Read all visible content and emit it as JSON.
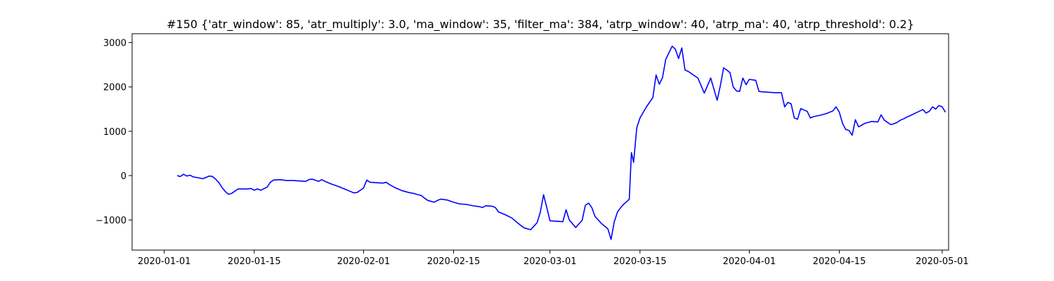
{
  "chart_data": {
    "type": "line",
    "title": "#150 {'atr_window': 85, 'atr_multiply': 3.0, 'ma_window': 35, 'filter_ma': 384, 'atrp_window': 40, 'atrp_ma': 40, 'atrp_threshold': 0.2}",
    "xlabel": "",
    "ylabel": "",
    "x_is_date": true,
    "xlim": [
      "2019-12-27",
      "2020-05-02"
    ],
    "ylim": [
      -1680,
      3200
    ],
    "xticks": [
      "2020-01-01",
      "2020-01-15",
      "2020-02-01",
      "2020-02-15",
      "2020-03-01",
      "2020-03-15",
      "2020-04-01",
      "2020-04-15",
      "2020-05-01"
    ],
    "yticks": [
      -1000,
      0,
      1000,
      2000,
      3000
    ],
    "ytick_labels": [
      "−1000",
      "0",
      "1000",
      "2000",
      "3000"
    ],
    "grid": false,
    "legend": "none",
    "series": [
      {
        "color": "#0000ff",
        "points": [
          [
            "2020-01-03",
            0
          ],
          [
            "2020-01-03",
            -20
          ],
          [
            "2020-01-04",
            30
          ],
          [
            "2020-01-04",
            -10
          ],
          [
            "2020-01-05",
            10
          ],
          [
            "2020-01-05",
            -30
          ],
          [
            "2020-01-06",
            -40
          ],
          [
            "2020-01-07",
            -70
          ],
          [
            "2020-01-07",
            -40
          ],
          [
            "2020-01-08",
            -10
          ],
          [
            "2020-01-08",
            -20
          ],
          [
            "2020-01-09",
            -80
          ],
          [
            "2020-01-09",
            -160
          ],
          [
            "2020-01-10",
            -270
          ],
          [
            "2020-01-10",
            -360
          ],
          [
            "2020-01-11",
            -420
          ],
          [
            "2020-01-11",
            -400
          ],
          [
            "2020-01-12",
            -350
          ],
          [
            "2020-01-12",
            -300
          ],
          [
            "2020-01-13",
            -300
          ],
          [
            "2020-01-14",
            -300
          ],
          [
            "2020-01-14",
            -290
          ],
          [
            "2020-01-15",
            -330
          ],
          [
            "2020-01-15",
            -300
          ],
          [
            "2020-01-16",
            -330
          ],
          [
            "2020-01-17",
            -260
          ],
          [
            "2020-01-17",
            -150
          ],
          [
            "2020-01-18",
            -100
          ],
          [
            "2020-01-19",
            -90
          ],
          [
            "2020-01-19",
            -100
          ],
          [
            "2020-01-20",
            -110
          ],
          [
            "2020-01-21",
            -110
          ],
          [
            "2020-01-22",
            -120
          ],
          [
            "2020-01-23",
            -130
          ],
          [
            "2020-01-23",
            -90
          ],
          [
            "2020-01-24",
            -80
          ],
          [
            "2020-01-25",
            -130
          ],
          [
            "2020-01-25",
            -90
          ],
          [
            "2020-01-26",
            -130
          ],
          [
            "2020-01-27",
            -190
          ],
          [
            "2020-01-28",
            -240
          ],
          [
            "2020-01-29",
            -300
          ],
          [
            "2020-01-30",
            -360
          ],
          [
            "2020-01-30",
            -390
          ],
          [
            "2020-01-31",
            -380
          ],
          [
            "2020-02-01",
            -280
          ],
          [
            "2020-02-01",
            -100
          ],
          [
            "2020-02-02",
            -150
          ],
          [
            "2020-02-03",
            -160
          ],
          [
            "2020-02-04",
            -170
          ],
          [
            "2020-02-04",
            -150
          ],
          [
            "2020-02-05",
            -200
          ],
          [
            "2020-02-06",
            -280
          ],
          [
            "2020-02-06",
            -310
          ],
          [
            "2020-02-07",
            -340
          ],
          [
            "2020-02-08",
            -380
          ],
          [
            "2020-02-09",
            -410
          ],
          [
            "2020-02-10",
            -450
          ],
          [
            "2020-02-10",
            -510
          ],
          [
            "2020-02-11",
            -560
          ],
          [
            "2020-02-12",
            -600
          ],
          [
            "2020-02-12",
            -560
          ],
          [
            "2020-02-13",
            -530
          ],
          [
            "2020-02-14",
            -550
          ],
          [
            "2020-02-15",
            -600
          ],
          [
            "2020-02-16",
            -640
          ],
          [
            "2020-02-17",
            -650
          ],
          [
            "2020-02-18",
            -680
          ],
          [
            "2020-02-19",
            -700
          ],
          [
            "2020-02-19",
            -720
          ],
          [
            "2020-02-20",
            -680
          ],
          [
            "2020-02-21",
            -690
          ],
          [
            "2020-02-21",
            -720
          ],
          [
            "2020-02-22",
            -820
          ],
          [
            "2020-02-23",
            -880
          ],
          [
            "2020-02-24",
            -950
          ],
          [
            "2020-02-25",
            -1070
          ],
          [
            "2020-02-25",
            -1130
          ],
          [
            "2020-02-26",
            -1180
          ],
          [
            "2020-02-27",
            -1220
          ],
          [
            "2020-02-27",
            -1140
          ],
          [
            "2020-02-28",
            -1060
          ],
          [
            "2020-02-28",
            -820
          ],
          [
            "2020-02-29",
            -430
          ],
          [
            "2020-02-29",
            -720
          ],
          [
            "2020-03-01",
            -1020
          ],
          [
            "2020-03-02",
            -1030
          ],
          [
            "2020-03-03",
            -1040
          ],
          [
            "2020-03-03",
            -770
          ],
          [
            "2020-03-04",
            -1000
          ],
          [
            "2020-03-05",
            -1170
          ],
          [
            "2020-03-05",
            -1090
          ],
          [
            "2020-03-06",
            -1010
          ],
          [
            "2020-03-06",
            -670
          ],
          [
            "2020-03-07",
            -620
          ],
          [
            "2020-03-07",
            -720
          ],
          [
            "2020-03-08",
            -920
          ],
          [
            "2020-03-09",
            -1080
          ],
          [
            "2020-03-10",
            -1200
          ],
          [
            "2020-03-10",
            -1440
          ],
          [
            "2020-03-11",
            -1040
          ],
          [
            "2020-03-11",
            -820
          ],
          [
            "2020-03-12",
            -720
          ],
          [
            "2020-03-12",
            -640
          ],
          [
            "2020-03-13",
            -580
          ],
          [
            "2020-03-13",
            -530
          ],
          [
            "2020-03-13",
            520
          ],
          [
            "2020-03-14",
            300
          ],
          [
            "2020-03-14",
            1080
          ],
          [
            "2020-03-15",
            1300
          ],
          [
            "2020-03-16",
            1550
          ],
          [
            "2020-03-17",
            1760
          ],
          [
            "2020-03-17",
            2270
          ],
          [
            "2020-03-18",
            2060
          ],
          [
            "2020-03-18",
            2210
          ],
          [
            "2020-03-19",
            2620
          ],
          [
            "2020-03-20",
            2920
          ],
          [
            "2020-03-20",
            2850
          ],
          [
            "2020-03-21",
            2640
          ],
          [
            "2020-03-21",
            2880
          ],
          [
            "2020-03-22",
            2380
          ],
          [
            "2020-03-22",
            2350
          ],
          [
            "2020-03-23",
            2300
          ],
          [
            "2020-03-24",
            2200
          ],
          [
            "2020-03-25",
            1860
          ],
          [
            "2020-03-25",
            2030
          ],
          [
            "2020-03-26",
            2200
          ],
          [
            "2020-03-27",
            1700
          ],
          [
            "2020-03-27",
            2030
          ],
          [
            "2020-03-28",
            2430
          ],
          [
            "2020-03-28",
            2380
          ],
          [
            "2020-03-29",
            2320
          ],
          [
            "2020-03-29",
            2000
          ],
          [
            "2020-03-30",
            1910
          ],
          [
            "2020-03-30",
            1900
          ],
          [
            "2020-03-31",
            2200
          ],
          [
            "2020-03-31",
            2050
          ],
          [
            "2020-04-01",
            2170
          ],
          [
            "2020-04-02",
            2150
          ],
          [
            "2020-04-02",
            1900
          ],
          [
            "2020-04-03",
            1890
          ],
          [
            "2020-04-04",
            1880
          ],
          [
            "2020-04-05",
            1870
          ],
          [
            "2020-04-06",
            1870
          ],
          [
            "2020-04-06",
            1550
          ],
          [
            "2020-04-07",
            1650
          ],
          [
            "2020-04-07",
            1620
          ],
          [
            "2020-04-08",
            1300
          ],
          [
            "2020-04-08",
            1270
          ],
          [
            "2020-04-09",
            1510
          ],
          [
            "2020-04-09",
            1480
          ],
          [
            "2020-04-10",
            1450
          ],
          [
            "2020-04-10",
            1300
          ],
          [
            "2020-04-11",
            1330
          ],
          [
            "2020-04-12",
            1360
          ],
          [
            "2020-04-13",
            1400
          ],
          [
            "2020-04-14",
            1460
          ],
          [
            "2020-04-14",
            1550
          ],
          [
            "2020-04-15",
            1430
          ],
          [
            "2020-04-15",
            1180
          ],
          [
            "2020-04-16",
            1040
          ],
          [
            "2020-04-16",
            1020
          ],
          [
            "2020-04-17",
            910
          ],
          [
            "2020-04-17",
            1260
          ],
          [
            "2020-04-18",
            1100
          ],
          [
            "2020-04-19",
            1180
          ],
          [
            "2020-04-19",
            1200
          ],
          [
            "2020-04-20",
            1220
          ],
          [
            "2020-04-21",
            1210
          ],
          [
            "2020-04-21",
            1370
          ],
          [
            "2020-04-22",
            1250
          ],
          [
            "2020-04-23",
            1150
          ],
          [
            "2020-04-23",
            1170
          ],
          [
            "2020-04-24",
            1200
          ],
          [
            "2020-04-24",
            1250
          ],
          [
            "2020-04-25",
            1280
          ],
          [
            "2020-04-25",
            1320
          ],
          [
            "2020-04-26",
            1350
          ],
          [
            "2020-04-27",
            1420
          ],
          [
            "2020-04-28",
            1490
          ],
          [
            "2020-04-28",
            1410
          ],
          [
            "2020-04-29",
            1450
          ],
          [
            "2020-04-29",
            1550
          ],
          [
            "2020-04-30",
            1500
          ],
          [
            "2020-04-30",
            1580
          ],
          [
            "2020-05-01",
            1550
          ],
          [
            "2020-05-01",
            1430
          ]
        ]
      }
    ]
  }
}
